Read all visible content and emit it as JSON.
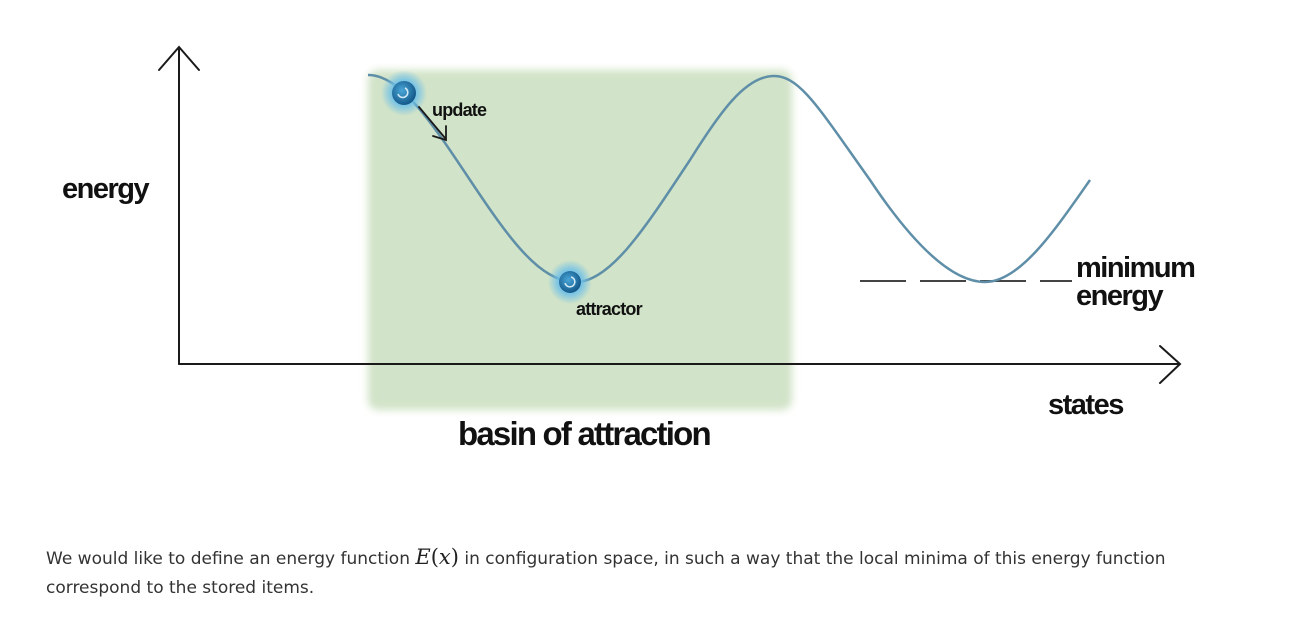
{
  "diagram": {
    "labels": {
      "y_axis": "energy",
      "x_axis": "states",
      "update": "update",
      "attractor": "attractor",
      "minimum_line1": "minimum",
      "minimum_line2": "energy",
      "basin": "basin of attraction"
    },
    "colors": {
      "basin_fill": "#d1e3c8",
      "curve": "#5f8fa8",
      "axis": "#1a1a1a",
      "ball_core": "#1f72a8",
      "ball_glow": "#7fc6ec",
      "dashes": "#444444"
    }
  },
  "paragraph": {
    "before_math": "We would like to define an energy function ",
    "math_symbol": "E",
    "math_open": "(",
    "math_var": "x",
    "math_close": ")",
    "after_math": " in configuration space, in such a way that the local minima of this energy function correspond to the stored items."
  }
}
